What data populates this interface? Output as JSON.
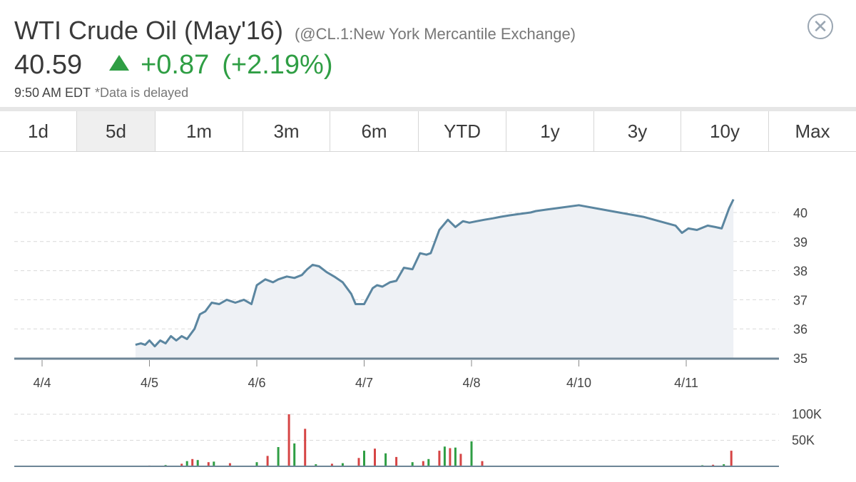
{
  "header": {
    "title": "WTI Crude Oil (May'16)",
    "exchange": "(@CL.1:New York Mercantile Exchange)",
    "price": "40.59",
    "change": "+0.87",
    "change_percent": "(+2.19%)",
    "time": "9:50 AM EDT",
    "delayed_note": "*Data is delayed",
    "close_icon": "close-circle-icon",
    "up_color": "#2f9e44"
  },
  "tabs": [
    {
      "label": "1d"
    },
    {
      "label": "5d",
      "active": true
    },
    {
      "label": "1m"
    },
    {
      "label": "3m"
    },
    {
      "label": "6m"
    },
    {
      "label": "YTD"
    },
    {
      "label": "1y"
    },
    {
      "label": "3y"
    },
    {
      "label": "10y"
    },
    {
      "label": "Max"
    }
  ],
  "chart_data": [
    {
      "type": "area",
      "color": "#5b86a0",
      "fill": "#eef1f5",
      "x_tick_labels": [
        "4/4",
        "4/5",
        "4/6",
        "4/7",
        "4/8",
        "4/10",
        "4/11"
      ],
      "y_tick_labels": [
        "35",
        "36",
        "37",
        "38",
        "39",
        "40"
      ],
      "ylim": [
        35,
        40.5
      ],
      "grid": "horizontal dashed",
      "series": [
        {
          "x": [
            0.87,
            0.92,
            0.96,
            1.0,
            1.05,
            1.1,
            1.15,
            1.2,
            1.25,
            1.3,
            1.35,
            1.42,
            1.47,
            1.52,
            1.58,
            1.65,
            1.72,
            1.8,
            1.88,
            1.95,
            2.0,
            2.08,
            2.15,
            2.2,
            2.28,
            2.35,
            2.42,
            2.47,
            2.52,
            2.58,
            2.65,
            2.72,
            2.8,
            2.88,
            2.92,
            3.0,
            3.08,
            3.12,
            3.17,
            3.24,
            3.3,
            3.37,
            3.45,
            3.52,
            3.58,
            3.62,
            3.7,
            3.78,
            3.85,
            3.92,
            3.98,
            4.05,
            4.12,
            4.2,
            4.27,
            4.35,
            4.45,
            4.55,
            4.6,
            4.7,
            4.8,
            5.0,
            5.3,
            5.6,
            5.8,
            5.9,
            5.96,
            6.02,
            6.1,
            6.2,
            6.27,
            6.33,
            6.4,
            6.44
          ],
          "values": [
            35.45,
            35.5,
            35.45,
            35.6,
            35.4,
            35.6,
            35.5,
            35.75,
            35.6,
            35.75,
            35.65,
            36.0,
            36.5,
            36.6,
            36.9,
            36.85,
            37.0,
            36.9,
            37.0,
            36.85,
            37.5,
            37.7,
            37.6,
            37.7,
            37.8,
            37.75,
            37.85,
            38.05,
            38.2,
            38.15,
            37.95,
            37.8,
            37.6,
            37.2,
            36.85,
            36.85,
            37.4,
            37.5,
            37.45,
            37.6,
            37.65,
            38.1,
            38.05,
            38.6,
            38.55,
            38.6,
            39.4,
            39.75,
            39.5,
            39.7,
            39.65,
            39.7,
            39.75,
            39.8,
            39.85,
            39.9,
            39.95,
            40.0,
            40.05,
            40.1,
            40.15,
            40.25,
            40.05,
            39.85,
            39.65,
            39.55,
            39.3,
            39.45,
            39.4,
            39.55,
            39.5,
            39.45,
            40.15,
            40.45
          ]
        }
      ]
    },
    {
      "type": "bar",
      "y_tick_labels": [
        "100K",
        "50K"
      ],
      "ylim": [
        0,
        100000
      ],
      "colors": {
        "up": "#2f9e44",
        "down": "#d64545"
      },
      "series": [
        {
          "x": [
            0.87,
            1.0,
            1.15,
            1.3,
            1.35,
            1.4,
            1.45,
            1.55,
            1.6,
            1.75,
            2.0,
            2.1,
            2.2,
            2.3,
            2.35,
            2.45,
            2.55,
            2.7,
            2.8,
            2.95,
            3.0,
            3.1,
            3.2,
            3.3,
            3.45,
            3.55,
            3.6,
            3.7,
            3.75,
            3.8,
            3.85,
            3.9,
            4.0,
            4.1,
            6.15,
            6.25,
            6.35,
            6.42
          ],
          "values": [
            1000,
            1500,
            2500,
            5000,
            10000,
            14000,
            12000,
            8000,
            9000,
            6000,
            8000,
            20000,
            37000,
            100000,
            44000,
            72000,
            4000,
            5000,
            6000,
            16000,
            30000,
            34000,
            25000,
            18000,
            8000,
            10000,
            14000,
            30000,
            38000,
            35000,
            36000,
            24000,
            48000,
            10000,
            2000,
            3000,
            4000,
            30000
          ]
        }
      ]
    }
  ]
}
